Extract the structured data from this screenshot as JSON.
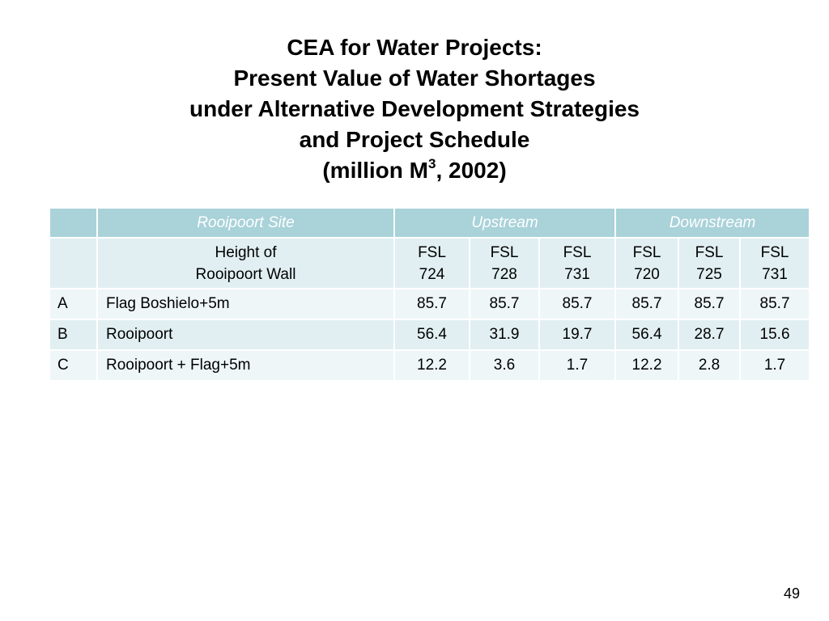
{
  "title": {
    "line1": "CEA for Water Projects:",
    "line2": "Present Value of Water Shortages",
    "line3": "under Alternative Development Strategies",
    "line4": "and Project Schedule",
    "line5_prefix": "(million M",
    "line5_sup": "3",
    "line5_suffix": ", 2002)"
  },
  "table": {
    "header": {
      "blank": "",
      "site": "Rooipoort Site",
      "upstream": "Upstream",
      "downstream": "Downstream"
    },
    "subheader": {
      "blank": "",
      "label_line1": "Height of",
      "label_line2": "Rooipoort Wall",
      "cols": [
        {
          "l1": "FSL",
          "l2": "724"
        },
        {
          "l1": "FSL",
          "l2": "728"
        },
        {
          "l1": "FSL",
          "l2": "731"
        },
        {
          "l1": "FSL",
          "l2": "720"
        },
        {
          "l1": "FSL",
          "l2": "725"
        },
        {
          "l1": "FSL",
          "l2": "731"
        }
      ]
    },
    "rows": [
      {
        "key": "A",
        "label": "Flag Boshielo+5m",
        "values": [
          "85.7",
          "85.7",
          "85.7",
          "85.7",
          "85.7",
          "85.7"
        ]
      },
      {
        "key": "B",
        "label": "Rooipoort",
        "values": [
          "56.4",
          "31.9",
          "19.7",
          "56.4",
          "28.7",
          "15.6"
        ]
      },
      {
        "key": "C",
        "label": "Rooipoort + Flag+5m",
        "values": [
          "12.2",
          "3.6",
          "1.7",
          "12.2",
          "2.8",
          "1.7"
        ]
      }
    ]
  },
  "page_number": "49"
}
